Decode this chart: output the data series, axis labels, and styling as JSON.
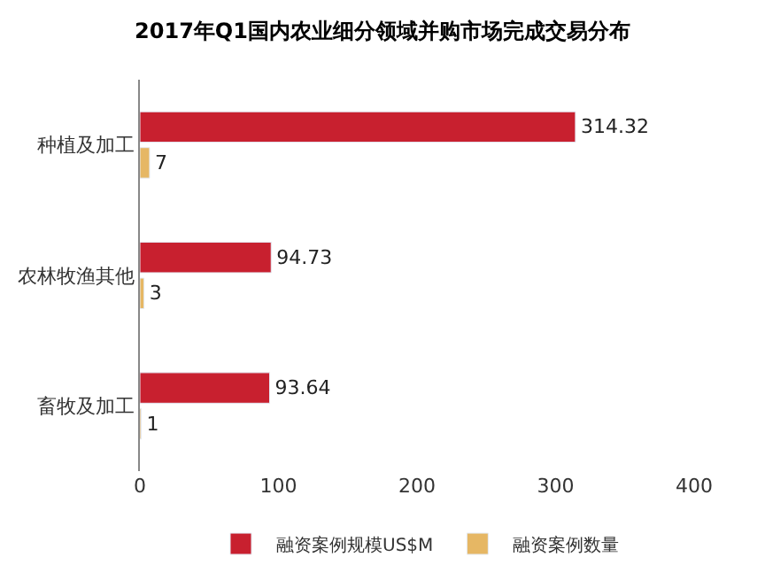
{
  "chart_data": {
    "type": "bar",
    "orientation": "horizontal",
    "title": "2017年Q1国内农业细分领域并购市场完成交易分布",
    "categories": [
      "种植及加工",
      "农林牧渔其他",
      "畜牧及加工"
    ],
    "series": [
      {
        "name": "融资案例规模US$M",
        "color": "#c8202f",
        "values": [
          314.32,
          94.73,
          93.64
        ]
      },
      {
        "name": "融资案例数量",
        "color": "#e6b764",
        "values": [
          7,
          3,
          1
        ]
      }
    ],
    "xlim": [
      0,
      400
    ],
    "xticks": [
      0,
      100,
      200,
      300,
      400
    ],
    "legend": "bottom",
    "data_labels": true
  }
}
